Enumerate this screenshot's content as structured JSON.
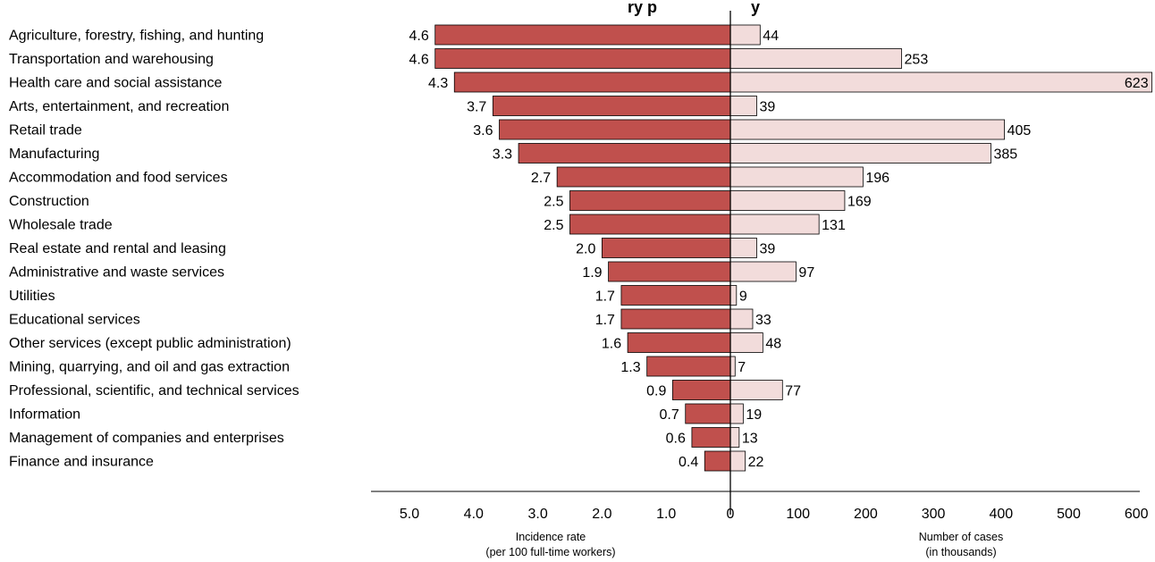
{
  "chart_data": {
    "type": "bar",
    "title_visible_fragment": "ry p",
    "title_visible_fragment2": "y",
    "categories": [
      "Agriculture, forestry, fishing, and hunting",
      "Transportation and warehousing",
      "Health care and social assistance",
      "Arts, entertainment, and recreation",
      "Retail trade",
      "Manufacturing",
      "Accommodation and food services",
      "Construction",
      "Wholesale trade",
      "Real estate and rental and leasing",
      "Administrative and waste services",
      "Utilities",
      "Educational services",
      "Other services (except public administration)",
      "Mining, quarrying, and oil and gas extraction",
      "Professional, scientific, and technical services",
      "Information",
      "Management of companies and enterprises",
      "Finance and insurance"
    ],
    "series": [
      {
        "values": [
          4.6,
          4.6,
          4.3,
          3.7,
          3.6,
          3.3,
          2.7,
          2.5,
          2.5,
          2.0,
          1.9,
          1.7,
          1.7,
          1.6,
          1.3,
          0.9,
          0.7,
          0.6,
          0.4
        ],
        "value_labels": [
          "4.6",
          "4.6",
          "4.3",
          "3.7",
          "3.6",
          "3.3",
          "2.7",
          "2.5",
          "2.5",
          "2.0",
          "1.9",
          "1.7",
          "1.7",
          "1.6",
          "1.3",
          "0.9",
          "0.7",
          "0.6",
          "0.4"
        ],
        "axis_title_line1": "Incidence rate",
        "axis_title_line2": "(per 100 full-time workers)",
        "ticks": [
          "5.0",
          "4.0",
          "3.0",
          "2.0",
          "1.0",
          "0"
        ],
        "tick_values": [
          5.0,
          4.0,
          3.0,
          2.0,
          1.0,
          0
        ],
        "range": [
          0,
          5.0
        ],
        "color": "#c0504d"
      },
      {
        "values": [
          44,
          253,
          623,
          39,
          405,
          385,
          196,
          169,
          131,
          39,
          97,
          9,
          33,
          48,
          7,
          77,
          19,
          13,
          22
        ],
        "value_labels": [
          "44",
          "253",
          "623",
          "39",
          "405",
          "385",
          "196",
          "169",
          "131",
          "39",
          "97",
          "9",
          "33",
          "48",
          "7",
          "77",
          "19",
          "13",
          "22"
        ],
        "axis_title_line1": "Number of cases",
        "axis_title_line2": "(in thousands)",
        "ticks": [
          "100",
          "200",
          "300",
          "400",
          "500",
          "600"
        ],
        "tick_values": [
          100,
          200,
          300,
          400,
          500,
          600
        ],
        "range": [
          0,
          600
        ],
        "color": "#f2dcdb"
      }
    ],
    "grid": false,
    "legend": "none"
  }
}
